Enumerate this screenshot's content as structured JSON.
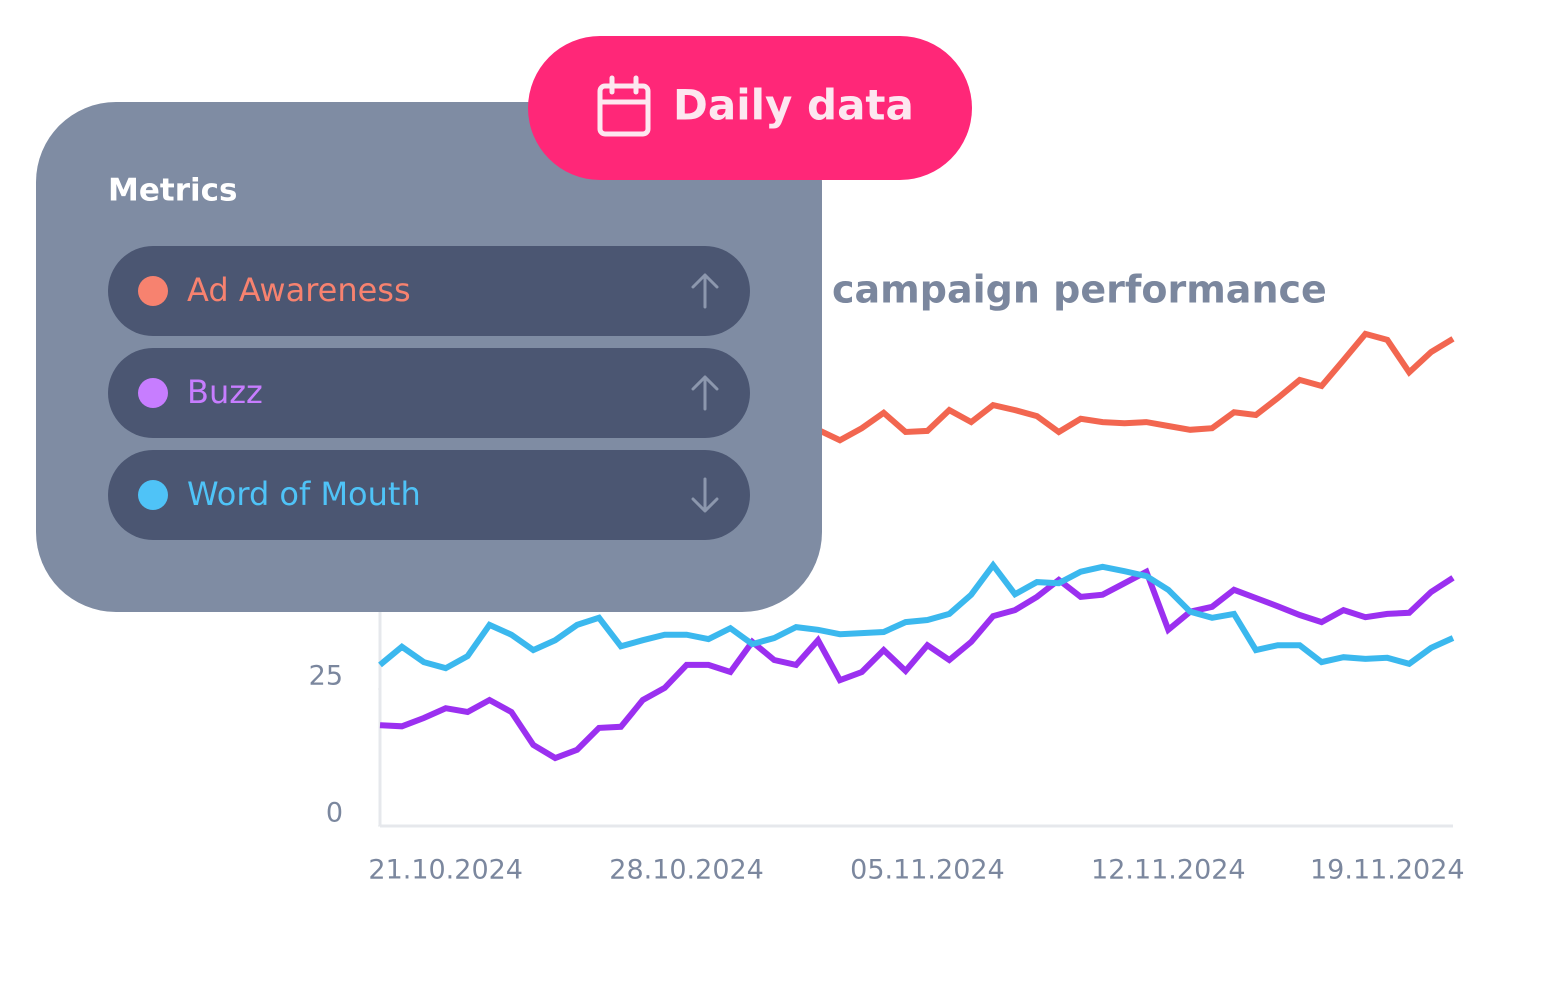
{
  "ui": {
    "badge": "Daily data",
    "panel_title": "Metrics"
  },
  "chart_data": {
    "type": "line",
    "title": "campaign performance",
    "categories": [
      null,
      null,
      null,
      "21.10.2024",
      null,
      null,
      null,
      null,
      null,
      null,
      null,
      null,
      null,
      null,
      "28.10.2024",
      null,
      null,
      null,
      null,
      null,
      null,
      null,
      null,
      null,
      null,
      "05.11.2024",
      null,
      null,
      null,
      null,
      null,
      null,
      null,
      null,
      null,
      null,
      "12.11.2024",
      null,
      null,
      null,
      null,
      null,
      null,
      null,
      null,
      null,
      "19.11.2024",
      null,
      null,
      null
    ],
    "ylim": [
      0,
      100
    ],
    "yticks": [
      0,
      25
    ],
    "series": [
      {
        "name": "Ad Awareness",
        "color": "#f26650",
        "legend_color": "#f7826f",
        "values": [
          null,
          null,
          null,
          null,
          null,
          null,
          null,
          null,
          null,
          null,
          null,
          null,
          null,
          null,
          null,
          null,
          null,
          null,
          null,
          null,
          72.3,
          70.4,
          72.6,
          75.4,
          71.9,
          72.1,
          75.9,
          73.7,
          76.8,
          75.9,
          74.8,
          71.9,
          74.3,
          73.7,
          73.5,
          73.7,
          73.0,
          72.3,
          72.6,
          75.5,
          75.0,
          78.1,
          81.4,
          80.3,
          85.0,
          89.8,
          88.7,
          82.8,
          86.5,
          88.9
        ]
      },
      {
        "name": "Buzz",
        "color": "#9b30f0",
        "legend_color": "#c77dff",
        "values": [
          18.4,
          18.2,
          19.7,
          21.5,
          20.8,
          23.0,
          20.8,
          14.8,
          12.4,
          13.9,
          17.9,
          18.1,
          23.0,
          25.2,
          29.4,
          29.4,
          28.1,
          33.6,
          30.3,
          29.4,
          33.9,
          26.6,
          28.1,
          32.1,
          28.3,
          33.0,
          30.3,
          33.6,
          38.3,
          39.4,
          41.8,
          44.9,
          41.8,
          42.2,
          44.3,
          46.4,
          35.8,
          39.1,
          40.0,
          43.1,
          41.6,
          40.1,
          38.5,
          37.2,
          39.4,
          38.1,
          38.7,
          38.9,
          42.7,
          45.3
        ]
      },
      {
        "name": "Word of Mouth",
        "color": "#3bb8ee",
        "legend_color": "#4fc3f7",
        "values": [
          29.4,
          32.7,
          29.9,
          28.8,
          31.0,
          36.7,
          34.9,
          32.1,
          33.9,
          36.7,
          38.0,
          32.8,
          33.9,
          34.9,
          34.9,
          34.1,
          36.1,
          33.2,
          34.3,
          36.3,
          35.8,
          35.0,
          35.2,
          35.4,
          37.2,
          37.6,
          38.7,
          42.2,
          47.6,
          42.3,
          44.5,
          44.3,
          46.4,
          47.3,
          46.5,
          45.6,
          43.1,
          39.1,
          38.0,
          38.7,
          32.1,
          33.0,
          33.0,
          29.9,
          30.8,
          30.5,
          30.7,
          29.6,
          32.5,
          34.3
        ]
      }
    ]
  }
}
